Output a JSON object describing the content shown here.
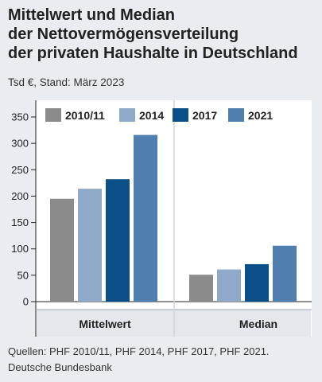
{
  "title_lines": [
    "Mittelwert und Median",
    "der Nettovermögensverteilung",
    "der privaten Haushalte in Deutschland"
  ],
  "subtitle": "Tsd €, Stand: März 2023",
  "footer_lines": [
    "Quellen: PHF 2010/11, PHF 2014, PHF 2017, PHF 2021.",
    "Deutsche Bundesbank"
  ],
  "colors": {
    "s2010": "#8b8b8b",
    "s2014": "#8fa9c9",
    "s2017": "#0a4f88",
    "s2021": "#4f7fae",
    "background": "#e9edf2",
    "plot": "#ffffff"
  },
  "chart_data": {
    "type": "bar",
    "categories": [
      "Mittelwert",
      "Median"
    ],
    "series": [
      {
        "name": "2010/11",
        "values": [
          195,
          51
        ]
      },
      {
        "name": "2014",
        "values": [
          214,
          61
        ]
      },
      {
        "name": "2017",
        "values": [
          232,
          71
        ]
      },
      {
        "name": "2021",
        "values": [
          316,
          106
        ]
      }
    ],
    "yticks": [
      0,
      50,
      100,
      150,
      200,
      250,
      300,
      350
    ],
    "ylim": [
      0,
      350
    ],
    "legend_position": "top",
    "grid": false
  }
}
